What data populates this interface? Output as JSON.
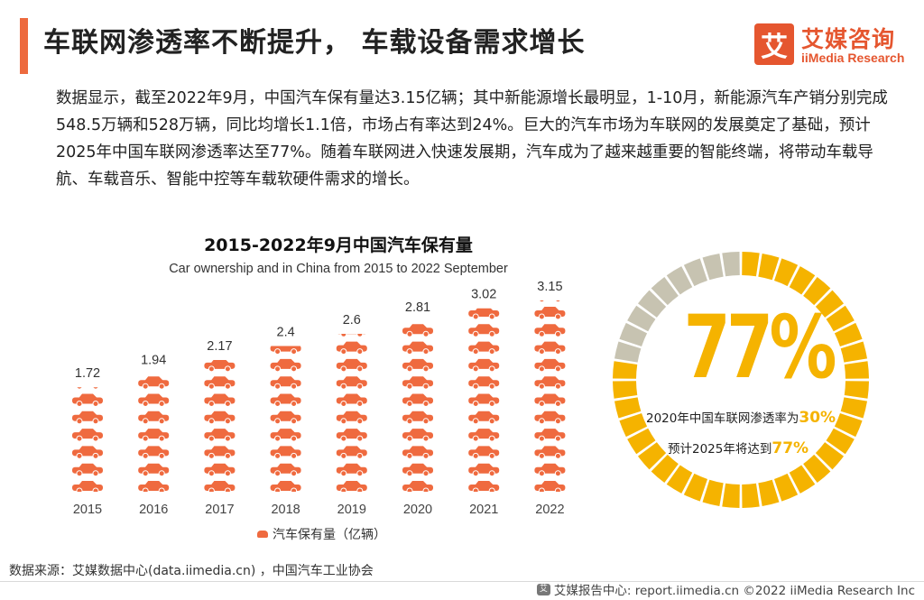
{
  "header": {
    "title": "车联网渗透率不断提升， 车载设备需求增长",
    "logo_mark": "艾",
    "logo_cn": "艾媒咨询",
    "logo_en": "iiMedia Research"
  },
  "paragraph": "数据显示，截至2022年9月，中国汽车保有量达3.15亿辆；其中新能源增长最明显，1-10月，新能源汽车产销分别完成548.5万辆和528万辆，同比均增长1.1倍，市场占有率达到24%。巨大的汽车市场为车联网的发展奠定了基础，预计2025年中国车联网渗透率达至77%。随着车联网进入快速发展期，汽车成为了越来越重要的智能终端，将带动车载导航、车载音乐、智能中控等车载软硬件需求的增长。",
  "chart_data": [
    {
      "type": "bar",
      "title": "2015-2022年9月中国汽车保有量",
      "subtitle": "Car ownership and in China from 2015 to 2022 September",
      "categories": [
        "2015",
        "2016",
        "2017",
        "2018",
        "2019",
        "2020",
        "2021",
        "2022"
      ],
      "series": [
        {
          "name": "汽车保有量（亿辆）",
          "values": [
            1.72,
            1.94,
            2.17,
            2.4,
            2.6,
            2.81,
            3.02,
            3.15
          ]
        }
      ],
      "ylim": [
        0,
        3.15
      ],
      "style": "pictograph-car-icons",
      "color": "#ef6a3f"
    },
    {
      "type": "pie",
      "style": "donut",
      "value": 77,
      "label": "77%",
      "segments": [
        {
          "value": 77,
          "color": "#f5b300"
        },
        {
          "value": 23,
          "color": "#c7c3b1"
        }
      ]
    }
  ],
  "donut_text": {
    "big": "77%",
    "line1_prefix": "2020年中国车联网渗透率为",
    "line1_value": "30%",
    "line2_prefix": "预计2025年将达到",
    "line2_value": "77%"
  },
  "source": "数据来源：艾媒数据中心(data.iimedia.cn) ，中国汽车工业协会",
  "footer": {
    "icon": "艾",
    "text": "艾媒报告中心: report.iimedia.cn    ©2022  iiMedia Research  Inc"
  },
  "colors": {
    "accent": "#ed6a3e",
    "bar": "#ef6a3f",
    "donut_main": "#f5b300",
    "donut_rest": "#c7c3b1"
  }
}
